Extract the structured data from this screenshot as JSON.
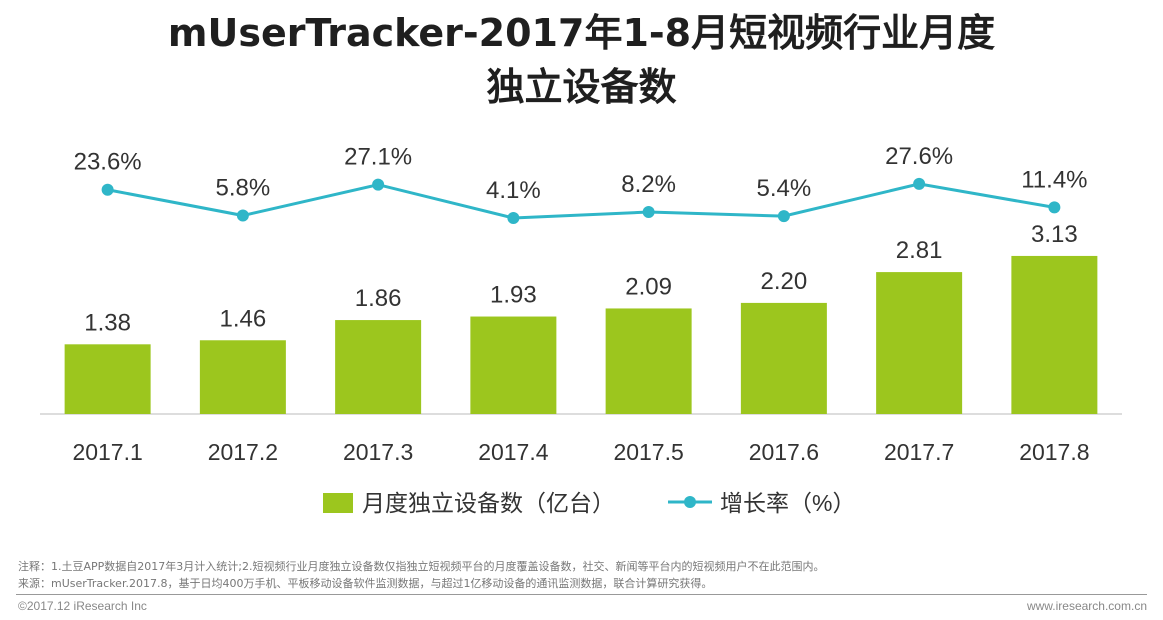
{
  "chart_data": {
    "type": "bar",
    "title_line1": "mUserTracker-2017年1-8月短视频行业月度",
    "title_line2": "独立设备数",
    "categories": [
      "2017.1",
      "2017.2",
      "2017.3",
      "2017.4",
      "2017.5",
      "2017.6",
      "2017.7",
      "2017.8"
    ],
    "series": [
      {
        "name": "月度独立设备数（亿台）",
        "type": "bar",
        "color": "#9cc61e",
        "values": [
          1.38,
          1.46,
          1.86,
          1.93,
          2.09,
          2.2,
          2.81,
          3.13
        ],
        "labels": [
          "1.38",
          "1.46",
          "1.86",
          "1.93",
          "2.09",
          "2.20",
          "2.81",
          "3.13"
        ]
      },
      {
        "name": "增长率（%）",
        "type": "line",
        "color": "#2fb6c8",
        "values": [
          23.6,
          5.8,
          27.1,
          4.1,
          8.2,
          5.4,
          27.6,
          11.4
        ],
        "labels": [
          "23.6%",
          "5.8%",
          "27.1%",
          "4.1%",
          "8.2%",
          "5.4%",
          "27.6%",
          "11.4%"
        ]
      }
    ],
    "legend_position": "bottom-center",
    "grid": false
  },
  "footer": {
    "note": "注释：1.土豆APP数据自2017年3月计入统计;2.短视频行业月度独立设备数仅指独立短视频平台的月度覆盖设备数，社交、新闻等平台内的短视频用户不在此范围内。",
    "source": "来源：mUserTracker.2017.8，基于日均400万手机、平板移动设备软件监测数据，与超过1亿移动设备的通讯监测数据，联合计算研究获得。",
    "copyright": "©2017.12 iResearch Inc",
    "website": "www.iresearch.com.cn"
  }
}
